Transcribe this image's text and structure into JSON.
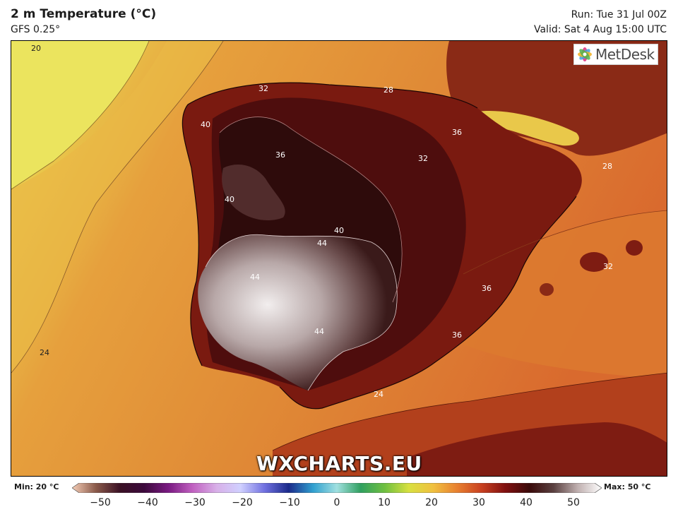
{
  "header": {
    "title": "2 m Temperature (°C)",
    "subtitle": "GFS 0.25°",
    "run": "Run: Tue 31 Jul 00Z",
    "valid": "Valid: Sat 4 Aug 15:00 UTC"
  },
  "logo": {
    "text": "MetDesk",
    "icon": "metdesk-flower-icon"
  },
  "watermark": "WXCHARTS.EU",
  "colorbar": {
    "min_label": "Min: 20 °C",
    "max_label": "Max: 50 °C",
    "ticks": [
      "−50",
      "−40",
      "−30",
      "−20",
      "−10",
      "0",
      "10",
      "20",
      "30",
      "40",
      "50"
    ],
    "range": [
      -50,
      50
    ],
    "stops": [
      "#f5cdb6",
      "#8a5a4a",
      "#3a1024",
      "#3c0a3c",
      "#7a1a82",
      "#c060c0",
      "#d8b0e8",
      "#d0d0ff",
      "#7070e0",
      "#1a2a8a",
      "#30a0d0",
      "#a0e0e0",
      "#30a060",
      "#70c040",
      "#d8e040",
      "#f0c040",
      "#e88030",
      "#c84020",
      "#801010",
      "#3a0a0a",
      "#5a4040",
      "#c0b0b0",
      "#ffffff"
    ]
  },
  "contour_labels": [
    "20",
    "24",
    "24",
    "28",
    "28",
    "32",
    "32",
    "32",
    "36",
    "36",
    "36",
    "36",
    "40",
    "40",
    "40",
    "44",
    "44",
    "44"
  ],
  "colors": {
    "cool": "#e8df5a",
    "warm": "#e69e3a",
    "hot": "#c85a28",
    "very_hot": "#7e1c12",
    "extreme": "#2e0b0b",
    "peak": "#ece8e8"
  }
}
